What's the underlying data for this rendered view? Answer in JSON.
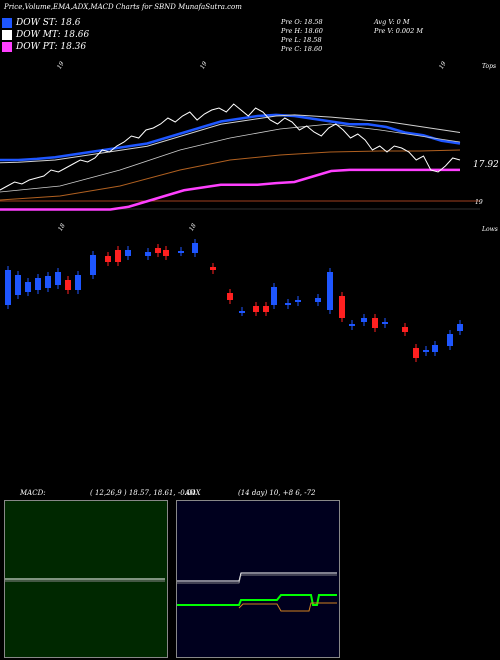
{
  "header": {
    "title": "Price,Volume,EMA,ADX,MACD Charts for SBND MunafaSutra.com"
  },
  "legend": [
    {
      "label": "DOW ST: 18.6",
      "color": "#1e56ff"
    },
    {
      "label": "DOW MT: 18.66",
      "color": "#ffffff"
    },
    {
      "label": "DOW PT: 18.36",
      "color": "#ff40ff"
    }
  ],
  "stats": {
    "open": "Pre   O: 18.58",
    "high": "Pre   H: 18.60",
    "low": "Pre   L: 18.58",
    "close": "Pre   C: 18.60",
    "avg_volume": "Avg V: 0  M",
    "volume": "Pre   V: 0.002  M"
  },
  "colors": {
    "price_line": "#ffffff",
    "ema_fast": "#1e56ff",
    "ema_mid": "#d0d0d0",
    "ema_slow": "#b06020",
    "pt_line": "#ff40ff",
    "candle_up": "#1e56ff",
    "candle_down": "#ff2020",
    "macd_bg": "#002800",
    "adx_bg": "#00001e",
    "adx_plus": "#00ff00",
    "adx_minus": "#d08020"
  },
  "chart_data": [
    {
      "type": "line",
      "title": "Price, EMA",
      "last_price_label": "17.92",
      "top_label": "Tops",
      "level_label": "19",
      "marker_label": "19",
      "series": [
        {
          "name": "DOW ST",
          "values": [
            17.8,
            17.8,
            17.82,
            17.85,
            17.9,
            17.95,
            18.0,
            18.05,
            18.1,
            18.2,
            18.3,
            18.4,
            18.5,
            18.55,
            18.6,
            18.62,
            18.6,
            18.55,
            18.5,
            18.45,
            18.45,
            18.4,
            18.3,
            18.25,
            18.15,
            18.1
          ]
        },
        {
          "name": "DOW MT",
          "values": [
            17.75,
            17.76,
            17.78,
            17.8,
            17.85,
            17.9,
            17.95,
            18.0,
            18.05,
            18.15,
            18.25,
            18.35,
            18.45,
            18.5,
            18.55,
            18.6,
            18.62,
            18.6,
            18.58,
            18.55,
            18.52,
            18.5,
            18.45,
            18.4,
            18.35,
            18.3
          ]
        },
        {
          "name": "DOW PT",
          "values": [
            16.9,
            16.9,
            16.9,
            16.9,
            16.9,
            16.9,
            16.9,
            16.95,
            17.05,
            17.15,
            17.25,
            17.3,
            17.35,
            17.35,
            17.35,
            17.38,
            17.4,
            17.5,
            17.6,
            17.62,
            17.62,
            17.62,
            17.62,
            17.62,
            17.62,
            17.62
          ]
        }
      ]
    },
    {
      "type": "bar",
      "title": "Candles",
      "bottom_label": "Lows",
      "marker_label": "18"
    },
    {
      "type": "line",
      "title": "MACD",
      "label": "MACD:",
      "params": "( 12,26,9 ) 18.57,  18.61,  -0.04"
    },
    {
      "type": "line",
      "title": "ADX",
      "label": "ADX",
      "params": "(14  day) 10,  +8           6,  -72"
    }
  ]
}
